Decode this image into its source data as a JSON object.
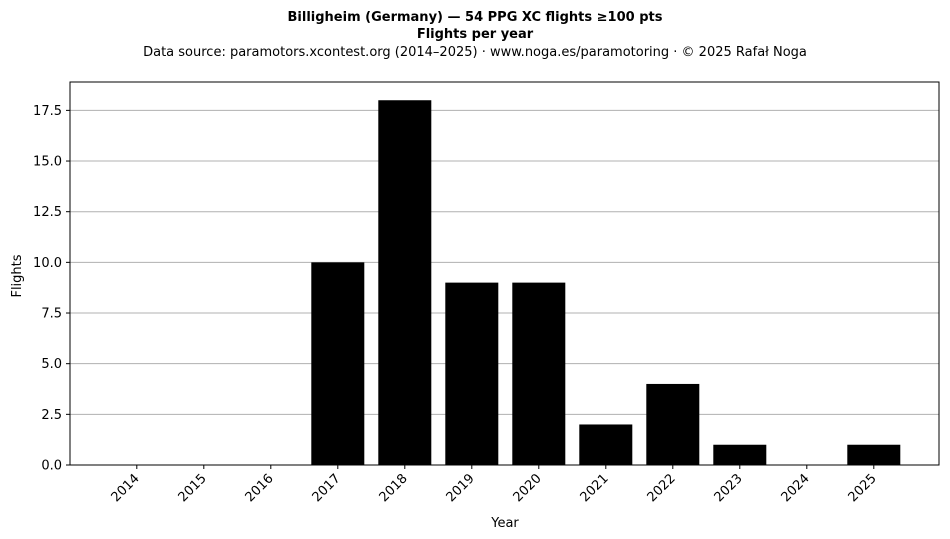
{
  "chart_data": {
    "type": "bar",
    "title": "Billigheim (Germany)  —  54 PPG XC flights ≥100 pts",
    "subtitle": "Flights per year",
    "source": "Data source: paramotors.xcontest.org (2014–2025)  ·  www.noga.es/paramotoring  ·  © 2025 Rafał Noga",
    "xlabel": "Year",
    "ylabel": "Flights",
    "categories": [
      "2014",
      "2015",
      "2016",
      "2017",
      "2018",
      "2019",
      "2020",
      "2021",
      "2022",
      "2023",
      "2024",
      "2025"
    ],
    "values": [
      0,
      0,
      0,
      10,
      18,
      9,
      9,
      2,
      4,
      1,
      0,
      1
    ],
    "ylim": [
      0,
      18.9
    ],
    "yticks": [
      0,
      2.5,
      5,
      7.5,
      10,
      12.5,
      15,
      17.5
    ],
    "ytick_labels": [
      "0.0",
      "2.5",
      "5.0",
      "7.5",
      "10.0",
      "12.5",
      "15.0",
      "17.5"
    ],
    "grid": "horizontal",
    "bar_color": "#000000",
    "grid_color": "#b0b0b0"
  }
}
